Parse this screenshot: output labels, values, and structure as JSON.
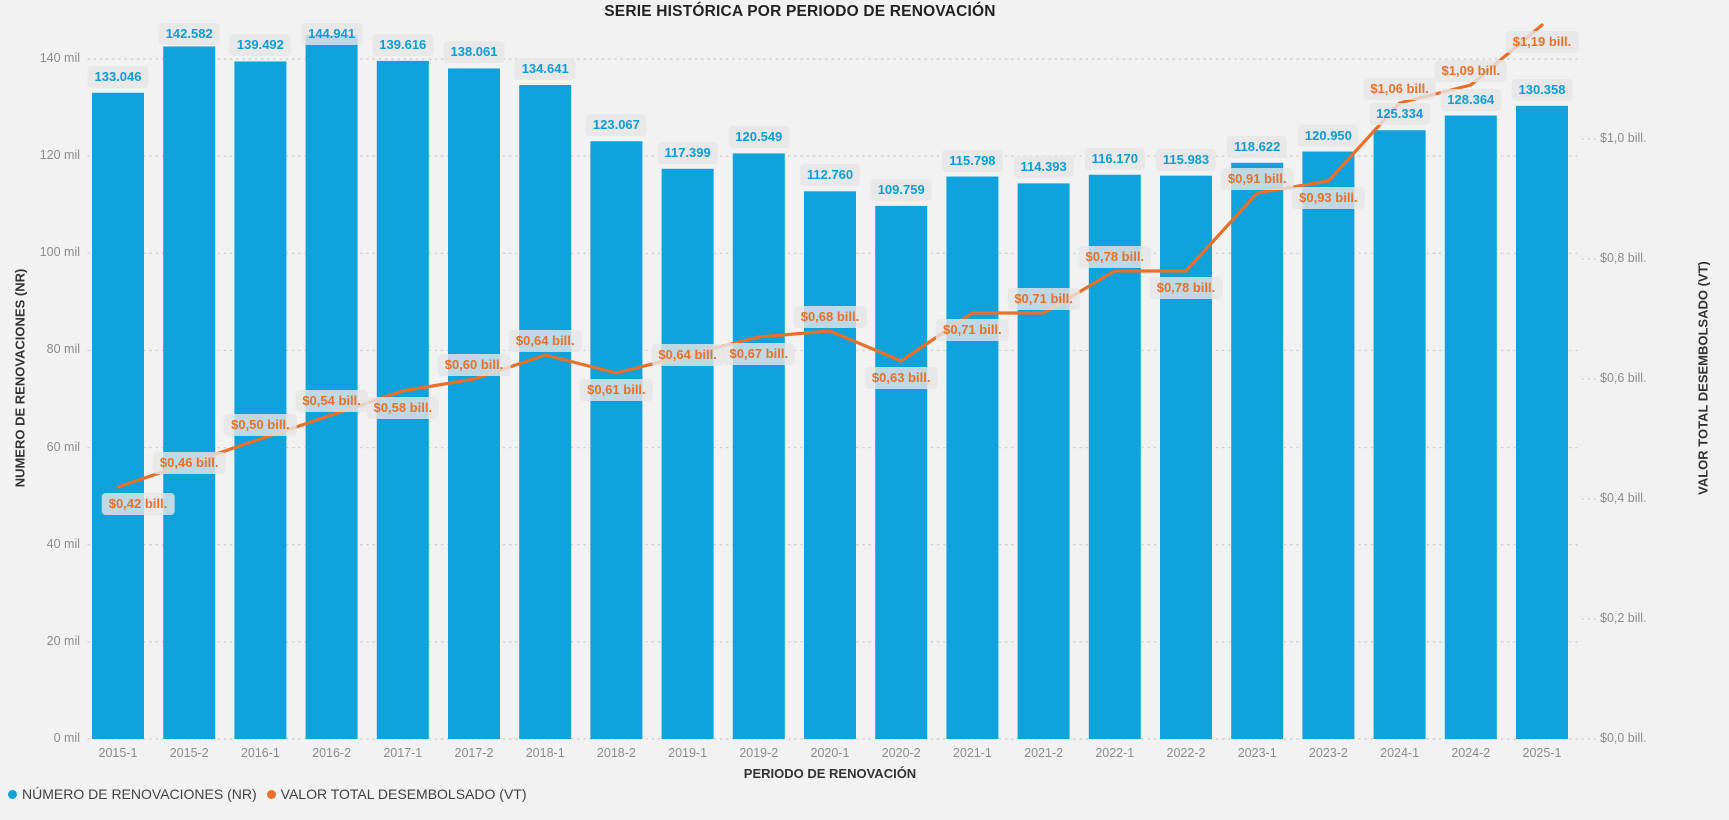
{
  "title": "SERIE HISTÓRICA POR PERIODO DE RENOVACIÓN",
  "colors": {
    "background": "#F2F2F2",
    "bar": "#0FA2DB",
    "bar_label_text": "#0D9DD6",
    "line": "#E8702B",
    "label_background": "rgba(229,229,229,0.82)",
    "grid": "#CFCFCF",
    "tick_text": "#8C8C8C",
    "axis_title_text": "#333333",
    "legend_text": "#424242",
    "title_text": "#222222"
  },
  "chart_data": {
    "type": "bar+line",
    "title": "SERIE HISTÓRICA POR PERIODO DE RENOVACIÓN",
    "xlabel": "PERIODO DE RENOVACIÓN",
    "ylabel_left": "NUMERO DE RENOVACIONES (NR)",
    "ylabel_right": "VALOR TOTAL DESEMBOLSADO (VT)",
    "grid": true,
    "legend_position": "bottom-left",
    "categories": [
      "2015-1",
      "2015-2",
      "2016-1",
      "2016-2",
      "2017-1",
      "2017-2",
      "2018-1",
      "2018-2",
      "2019-1",
      "2019-2",
      "2020-1",
      "2020-2",
      "2021-1",
      "2021-2",
      "2022-1",
      "2022-2",
      "2023-1",
      "2023-2",
      "2024-1",
      "2024-2",
      "2025-1"
    ],
    "left_axis": {
      "min": 0,
      "max": 140000,
      "ticks": [
        "0 mil",
        "20 mil",
        "40 mil",
        "60 mil",
        "80 mil",
        "100 mil",
        "120 mil",
        "140 mil"
      ]
    },
    "right_axis": {
      "min": 0.0,
      "max": 1.0,
      "ticks": [
        "$0,0 bill.",
        "$0,2 bill.",
        "$0,4 bill.",
        "$0,6 bill.",
        "$0,8 bill.",
        "$1,0 bill."
      ]
    },
    "series": [
      {
        "name": "NÚMERO DE RENOVACIONES (NR)",
        "type": "bar",
        "axis": "left",
        "values": [
          133046,
          142582,
          139492,
          144941,
          139616,
          138061,
          134641,
          123067,
          117399,
          120549,
          112760,
          109759,
          115798,
          114393,
          116170,
          115983,
          118622,
          120950,
          125334,
          128364,
          130358
        ],
        "labels": [
          "133.046",
          "142.582",
          "139.492",
          "144.941",
          "139.616",
          "138.061",
          "134.641",
          "123.067",
          "117.399",
          "120.549",
          "112.760",
          "109.759",
          "115.798",
          "114.393",
          "116.170",
          "115.983",
          "118.622",
          "120.950",
          "125.334",
          "128.364",
          "130.358"
        ]
      },
      {
        "name": "VALOR TOTAL DESEMBOLSADO (VT)",
        "type": "line",
        "axis": "right",
        "values": [
          0.42,
          0.46,
          0.5,
          0.54,
          0.58,
          0.6,
          0.64,
          0.61,
          0.64,
          0.67,
          0.68,
          0.63,
          0.71,
          0.71,
          0.78,
          0.78,
          0.91,
          0.93,
          1.06,
          1.09,
          1.19
        ],
        "labels": [
          "$0,42 bill.",
          "$0,46 bill.",
          "$0,50 bill.",
          "$0,54 bill.",
          "$0,58 bill.",
          "$0,60 bill.",
          "$0,64 bill.",
          "$0,61 bill.",
          "$0,64 bill.",
          "$0,67 bill.",
          "$0,68 bill.",
          "$0,63 bill.",
          "$0,71 bill.",
          "$0,71 bill.",
          "$0,78 bill.",
          "$0,78 bill.",
          "$0,91 bill.",
          "$0,93 bill.",
          "$1,06 bill.",
          "$1,09 bill.",
          "$1,19 bill."
        ],
        "label_side": [
          "below",
          "center",
          "above",
          "above",
          "below",
          "above",
          "above",
          "below",
          "center",
          "below",
          "above",
          "below",
          "below",
          "above",
          "above",
          "below",
          "above",
          "below",
          "above",
          "above",
          "below"
        ]
      }
    ]
  },
  "legend": {
    "items": [
      {
        "label": "NÚMERO DE RENOVACIONES (NR)",
        "marker": "circle",
        "color_key": "bar"
      },
      {
        "label": "VALOR TOTAL DESEMBOLSADO (VT)",
        "marker": "circle",
        "color_key": "line"
      }
    ]
  }
}
